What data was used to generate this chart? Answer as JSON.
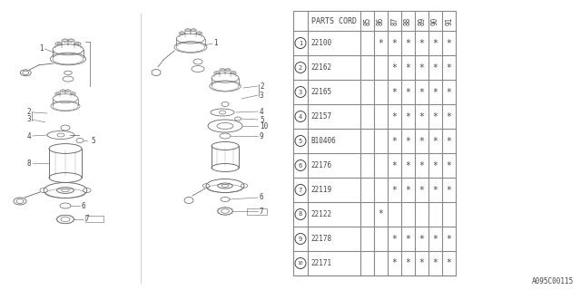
{
  "bg_color": "#ffffff",
  "table": {
    "header_text": "PARTS CORD",
    "year_cols": [
      "85",
      "86",
      "87",
      "88",
      "89",
      "90",
      "91"
    ],
    "rows": [
      {
        "num": 1,
        "part": "22100",
        "marks": [
          false,
          true,
          true,
          true,
          true,
          true,
          true
        ]
      },
      {
        "num": 2,
        "part": "22162",
        "marks": [
          false,
          false,
          true,
          true,
          true,
          true,
          true
        ]
      },
      {
        "num": 3,
        "part": "22165",
        "marks": [
          false,
          false,
          true,
          true,
          true,
          true,
          true
        ]
      },
      {
        "num": 4,
        "part": "22157",
        "marks": [
          false,
          false,
          true,
          true,
          true,
          true,
          true
        ]
      },
      {
        "num": 5,
        "part": "B10406",
        "marks": [
          false,
          false,
          true,
          true,
          true,
          true,
          true
        ]
      },
      {
        "num": 6,
        "part": "22176",
        "marks": [
          false,
          false,
          true,
          true,
          true,
          true,
          true
        ]
      },
      {
        "num": 7,
        "part": "22119",
        "marks": [
          false,
          false,
          true,
          true,
          true,
          true,
          true
        ]
      },
      {
        "num": 8,
        "part": "22122",
        "marks": [
          false,
          true,
          false,
          false,
          false,
          false,
          false
        ]
      },
      {
        "num": 9,
        "part": "22178",
        "marks": [
          false,
          false,
          true,
          true,
          true,
          true,
          true
        ]
      },
      {
        "num": 10,
        "part": "22171",
        "marks": [
          false,
          false,
          true,
          true,
          true,
          true,
          true
        ]
      }
    ]
  },
  "watermark": "A095C00115",
  "lc": "#666666",
  "tc": "#444444",
  "tlc": "#888888"
}
